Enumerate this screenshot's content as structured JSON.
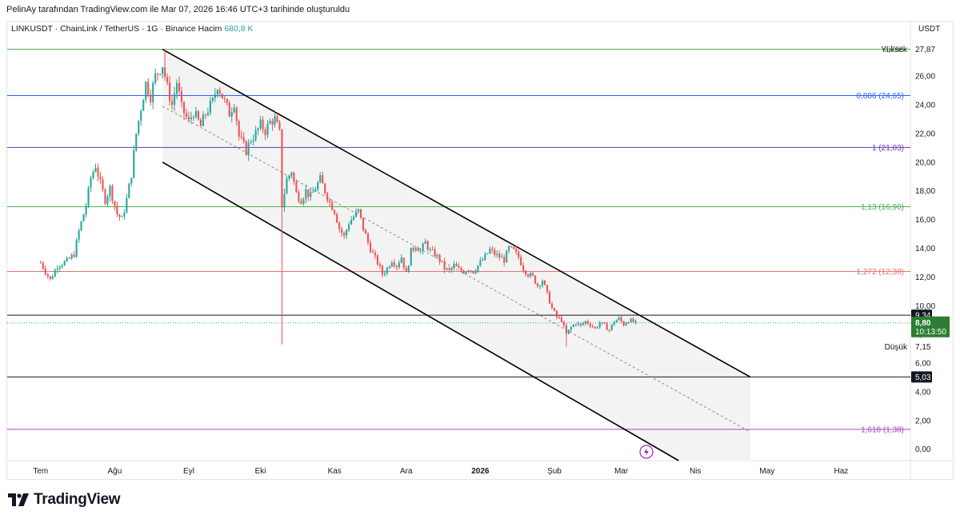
{
  "caption": "PelinAy tarafından TradingView.com ile Mar 07, 2026 16:46 UTC+3 tarihinde oluşturuldu",
  "legend": {
    "symbol": "LINKUSDT · ChainLink / TetherUS · 1G · Binance",
    "volume_label": "Hacim",
    "volume_value": "680,8 K"
  },
  "brand": "TradingView",
  "chart_data": {
    "type": "candlestick",
    "unit": "USDT",
    "ylim": [
      -0.8,
      28.8
    ],
    "y_ticks": [
      "0,00",
      "2,00",
      "4,00",
      "6,00",
      "8,00",
      "10,00",
      "12,00",
      "14,00",
      "16,00",
      "18,00",
      "20,00",
      "22,00",
      "24,00",
      "26,00"
    ],
    "x_ticks": [
      "Tem",
      "Ağu",
      "Eyl",
      "Eki",
      "Kas",
      "Ara",
      "2026",
      "Şub",
      "Mar",
      "Nis",
      "May",
      "Haz"
    ],
    "fib_levels": [
      {
        "label": "0,786",
        "value": 27.87,
        "color": "#4caf50"
      },
      {
        "label": "0,886 (24,65)",
        "value": 24.65,
        "color": "#2962ff"
      },
      {
        "label": "1 (21,03)",
        "value": 21.03,
        "color": "#673ab7"
      },
      {
        "label": "1,13 (16,90)",
        "value": 16.9,
        "color": "#4caf50"
      },
      {
        "label": "1,272 (12,38)",
        "value": 12.38,
        "color": "#e57373"
      },
      {
        "label": "1,618 (1,38)",
        "value": 1.38,
        "color": "#ab47bc"
      }
    ],
    "horizontal_lines": [
      9.34,
      5.03
    ],
    "price_labels": {
      "high_label": "Yüksek",
      "high_value": "27,87",
      "low_label": "Düşük",
      "low_value": "7,15",
      "line1": "9,34",
      "line2": "5,03",
      "last": "8,80",
      "countdown": "10:13:50"
    },
    "channel": {
      "upper": [
        [
          "2025-08-21",
          27.87
        ],
        [
          "2026-04-24",
          5.03
        ]
      ],
      "lower": [
        [
          "2025-08-21",
          20.0
        ],
        [
          "2026-03-25",
          -0.8
        ]
      ],
      "mid": [
        [
          "2025-08-21",
          23.9
        ],
        [
          "2026-04-24",
          1.2
        ]
      ]
    },
    "price_path": [
      [
        "2025-07-01",
        13.0
      ],
      [
        "2025-07-05",
        11.8
      ],
      [
        "2025-07-08",
        12.8
      ],
      [
        "2025-07-12",
        13.1
      ],
      [
        "2025-07-15",
        13.6
      ],
      [
        "2025-07-17",
        15.2
      ],
      [
        "2025-07-20",
        17.0
      ],
      [
        "2025-07-22",
        18.9
      ],
      [
        "2025-07-24",
        19.8
      ],
      [
        "2025-07-26",
        18.5
      ],
      [
        "2025-07-28",
        17.4
      ],
      [
        "2025-07-30",
        18.2
      ],
      [
        "2025-08-02",
        16.4
      ],
      [
        "2025-08-04",
        16.0
      ],
      [
        "2025-08-06",
        17.4
      ],
      [
        "2025-08-08",
        19.2
      ],
      [
        "2025-08-10",
        22.0
      ],
      [
        "2025-08-12",
        23.8
      ],
      [
        "2025-08-14",
        25.5
      ],
      [
        "2025-08-16",
        24.6
      ],
      [
        "2025-08-18",
        26.0
      ],
      [
        "2025-08-21",
        26.8
      ],
      [
        "2025-08-23",
        25.2
      ],
      [
        "2025-08-25",
        24.0
      ],
      [
        "2025-08-27",
        25.6
      ],
      [
        "2025-08-29",
        23.8
      ],
      [
        "2025-09-01",
        22.8
      ],
      [
        "2025-09-03",
        23.5
      ],
      [
        "2025-09-06",
        22.5
      ],
      [
        "2025-09-08",
        23.4
      ],
      [
        "2025-09-11",
        24.2
      ],
      [
        "2025-09-13",
        25.4
      ],
      [
        "2025-09-15",
        24.6
      ],
      [
        "2025-09-18",
        23.4
      ],
      [
        "2025-09-20",
        24.2
      ],
      [
        "2025-09-22",
        21.8
      ],
      [
        "2025-09-25",
        20.8
      ],
      [
        "2025-09-27",
        21.6
      ],
      [
        "2025-09-29",
        22.0
      ],
      [
        "2025-10-01",
        22.6
      ],
      [
        "2025-10-03",
        22.2
      ],
      [
        "2025-10-05",
        22.8
      ],
      [
        "2025-10-07",
        23.0
      ],
      [
        "2025-10-09",
        22.0
      ],
      [
        "2025-10-10",
        17.0
      ],
      [
        "2025-10-12",
        18.8
      ],
      [
        "2025-10-14",
        19.4
      ],
      [
        "2025-10-16",
        17.8
      ],
      [
        "2025-10-18",
        17.4
      ],
      [
        "2025-10-20",
        18.0
      ],
      [
        "2025-10-22",
        17.6
      ],
      [
        "2025-10-24",
        18.2
      ],
      [
        "2025-10-26",
        18.8
      ],
      [
        "2025-10-28",
        18.0
      ],
      [
        "2025-10-30",
        17.2
      ],
      [
        "2025-11-01",
        16.6
      ],
      [
        "2025-11-03",
        15.4
      ],
      [
        "2025-11-05",
        14.8
      ],
      [
        "2025-11-07",
        15.8
      ],
      [
        "2025-11-09",
        16.2
      ],
      [
        "2025-11-11",
        16.6
      ],
      [
        "2025-11-13",
        15.4
      ],
      [
        "2025-11-15",
        14.4
      ],
      [
        "2025-11-17",
        13.6
      ],
      [
        "2025-11-19",
        13.0
      ],
      [
        "2025-11-21",
        12.2
      ],
      [
        "2025-11-23",
        12.6
      ],
      [
        "2025-11-25",
        13.2
      ],
      [
        "2025-11-27",
        12.8
      ],
      [
        "2025-11-29",
        13.4
      ],
      [
        "2025-12-01",
        12.2
      ],
      [
        "2025-12-03",
        13.8
      ],
      [
        "2025-12-05",
        14.2
      ],
      [
        "2025-12-07",
        13.8
      ],
      [
        "2025-12-09",
        14.4
      ],
      [
        "2025-12-11",
        13.8
      ],
      [
        "2025-12-13",
        13.6
      ],
      [
        "2025-12-15",
        13.2
      ],
      [
        "2025-12-17",
        12.6
      ],
      [
        "2025-12-19",
        12.4
      ],
      [
        "2025-12-21",
        12.8
      ],
      [
        "2025-12-23",
        12.5
      ],
      [
        "2025-12-25",
        12.4
      ],
      [
        "2025-12-27",
        12.6
      ],
      [
        "2025-12-29",
        12.4
      ],
      [
        "2025-12-31",
        12.8
      ],
      [
        "2026-01-03",
        13.4
      ],
      [
        "2026-01-05",
        13.9
      ],
      [
        "2026-01-07",
        13.6
      ],
      [
        "2026-01-09",
        13.4
      ],
      [
        "2026-01-11",
        13.2
      ],
      [
        "2026-01-13",
        14.0
      ],
      [
        "2026-01-15",
        13.8
      ],
      [
        "2026-01-17",
        13.4
      ],
      [
        "2026-01-19",
        12.6
      ],
      [
        "2026-01-21",
        12.2
      ],
      [
        "2026-01-23",
        12.0
      ],
      [
        "2026-01-25",
        11.4
      ],
      [
        "2026-01-27",
        11.8
      ],
      [
        "2026-01-29",
        10.8
      ],
      [
        "2026-01-31",
        9.8
      ],
      [
        "2026-02-02",
        9.2
      ],
      [
        "2026-02-04",
        9.0
      ],
      [
        "2026-02-06",
        8.0
      ],
      [
        "2026-02-08",
        8.5
      ],
      [
        "2026-02-10",
        8.8
      ],
      [
        "2026-02-12",
        8.6
      ],
      [
        "2026-02-14",
        8.9
      ],
      [
        "2026-02-16",
        8.7
      ],
      [
        "2026-02-18",
        8.4
      ],
      [
        "2026-02-20",
        8.8
      ],
      [
        "2026-02-22",
        8.6
      ],
      [
        "2026-02-24",
        8.3
      ],
      [
        "2026-02-26",
        8.9
      ],
      [
        "2026-02-28",
        9.1
      ],
      [
        "2026-03-02",
        8.7
      ],
      [
        "2026-03-04",
        9.0
      ],
      [
        "2026-03-07",
        8.8
      ]
    ]
  }
}
